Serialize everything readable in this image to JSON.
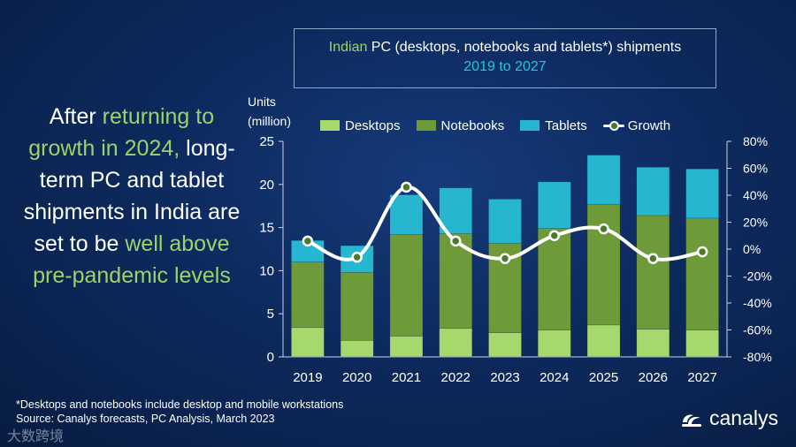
{
  "headline": {
    "part1": "After ",
    "part2": "returning to growth in 2024,",
    "part3": " long-term PC and tablet shipments in India are set to be ",
    "part4": "well above pre-pandemic levels"
  },
  "chart_title": {
    "highlight": "Indian",
    "rest": " PC (desktops, notebooks and tablets*) shipments",
    "subtitle": "2019 to 2027"
  },
  "units_label_line1": "Units",
  "units_label_line2": "(million)",
  "legend": {
    "desktops": "Desktops",
    "notebooks": "Notebooks",
    "tablets": "Tablets",
    "growth": "Growth"
  },
  "footnote": {
    "line1": "*Desktops and notebooks include desktop and mobile workstations",
    "line2": "Source: Canalys forecasts, PC Analysis, March 2023"
  },
  "logo_text": "canalys",
  "watermark_text": "大数跨境",
  "colors": {
    "desktops": "#a6d86e",
    "notebooks": "#6f9a3a",
    "tablets": "#27b6cf",
    "growth_line": "#ffffff",
    "growth_marker_fill": "#4a7a2a",
    "highlight": "#9bd36a",
    "subtitle": "#27c4e0"
  },
  "chart_data": {
    "type": "bar",
    "stacked": true,
    "categories": [
      "2019",
      "2020",
      "2021",
      "2022",
      "2023",
      "2024",
      "2025",
      "2026",
      "2027"
    ],
    "series": [
      {
        "name": "Desktops",
        "values": [
          3.4,
          1.9,
          2.4,
          3.3,
          2.8,
          3.1,
          3.7,
          3.2,
          3.1
        ]
      },
      {
        "name": "Notebooks",
        "values": [
          7.6,
          7.9,
          11.8,
          11.0,
          10.4,
          11.8,
          14.0,
          13.2,
          13.0
        ]
      },
      {
        "name": "Tablets",
        "values": [
          2.5,
          3.1,
          4.6,
          5.3,
          5.1,
          5.4,
          5.7,
          5.6,
          5.7
        ]
      }
    ],
    "growth": {
      "name": "Growth",
      "values": [
        6,
        -6,
        46,
        6,
        -7,
        10,
        15,
        -7,
        -2
      ]
    },
    "ylim": [
      0,
      25
    ],
    "yticks": [
      "0",
      "5",
      "10",
      "15",
      "20",
      "25"
    ],
    "y2lim": [
      -80,
      80
    ],
    "y2ticks": [
      "-80%",
      "-60%",
      "-40%",
      "-20%",
      "0%",
      "20%",
      "40%",
      "60%",
      "80%"
    ],
    "grid": false,
    "legend_position": "top"
  }
}
